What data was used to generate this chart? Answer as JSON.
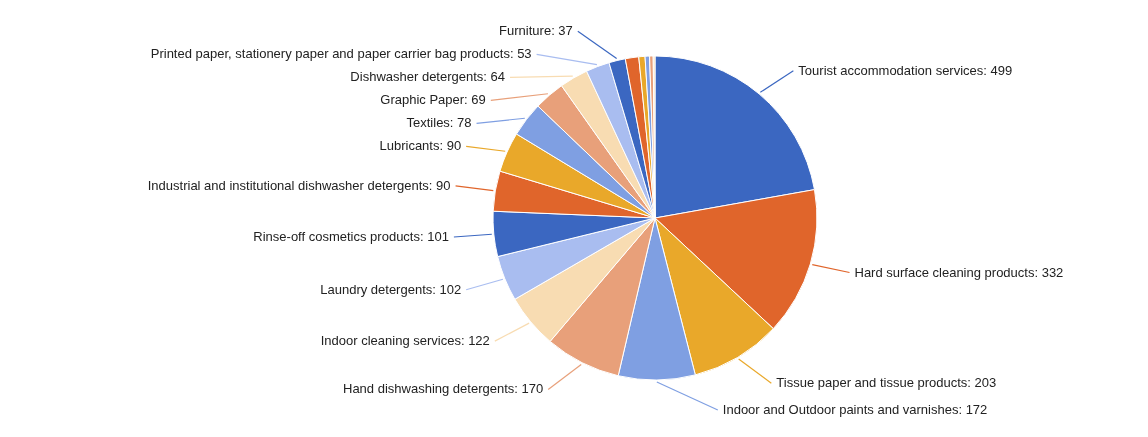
{
  "chart_data": {
    "type": "pie",
    "categories": [
      "Tourist accommodation services",
      "Hard surface cleaning products",
      "Tissue paper and tissue products",
      "Indoor and Outdoor paints and varnishes",
      "Hand dishwashing detergents",
      "Indoor cleaning services",
      "Laundry detergents",
      "Rinse-off cosmetics products",
      "Industrial and institutional dishwasher detergents",
      "Lubricants",
      "Textiles",
      "Graphic Paper",
      "Dishwasher detergents",
      "Printed paper, stationery paper and paper carrier bag products",
      "Furniture",
      null,
      null,
      null,
      null,
      null
    ],
    "values": [
      499,
      332,
      203,
      172,
      170,
      122,
      102,
      101,
      90,
      90,
      78,
      69,
      64,
      53,
      37,
      30,
      14,
      10,
      8,
      4
    ],
    "value_labels": [
      "499",
      "332",
      "203",
      "172",
      "170",
      "122",
      "102",
      "101",
      "90",
      "90",
      "78",
      "69",
      "64",
      "53",
      "37",
      null,
      null,
      null,
      null,
      null
    ],
    "colors": [
      "#3b67c1",
      "#e0652b",
      "#e9a82a",
      "#7f9fe2",
      "#e8a07a",
      "#f8dcb2",
      "#a9bdf0",
      "#3b67c1",
      "#e0652b",
      "#e9a82a",
      "#7f9fe2",
      "#e8a07a",
      "#f8dcb2",
      "#a9bdf0",
      "#3b67c1",
      "#e0652b",
      "#e9a82a",
      "#7f9fe2",
      "#e8a07a",
      "#f8dcb2"
    ]
  }
}
